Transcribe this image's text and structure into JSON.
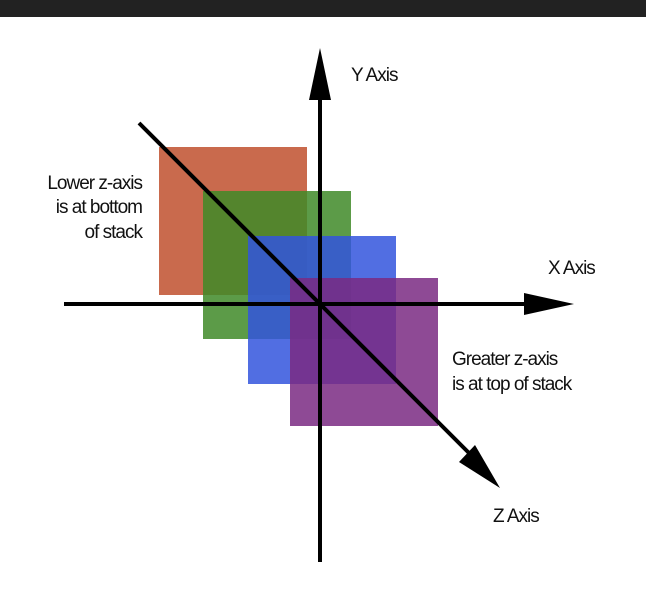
{
  "window": {
    "title_bar_color": "#222222"
  },
  "diagram": {
    "title": "",
    "axes": {
      "y": {
        "label": "Y Axis"
      },
      "x": {
        "label": "X Axis"
      },
      "z": {
        "label": "Z Axis"
      }
    },
    "annotations": {
      "lower": [
        "Lower z-axis",
        "is at bottom",
        "of stack"
      ],
      "greater": [
        "Greater z-axis",
        "is at top of stack"
      ]
    },
    "layers": [
      {
        "name": "red-layer",
        "color": "#c0502e",
        "z_order": 1
      },
      {
        "name": "green-layer",
        "color": "#3f8a28",
        "z_order": 2
      },
      {
        "name": "blue-layer",
        "color": "#3355dd",
        "z_order": 3
      },
      {
        "name": "purple-layer",
        "color": "#7a2a82",
        "z_order": 4
      }
    ],
    "axis_color": "#000000"
  }
}
